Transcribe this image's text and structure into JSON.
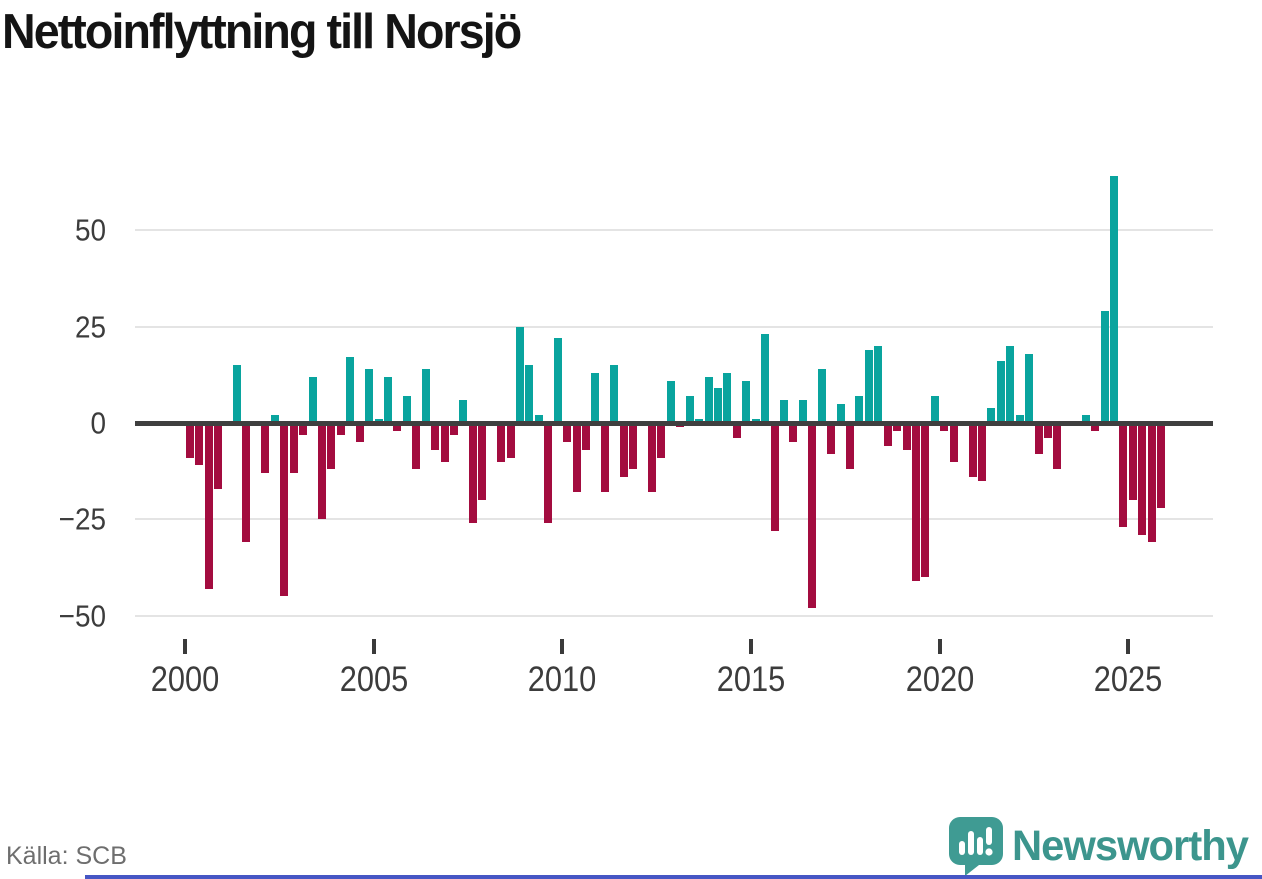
{
  "title": "Nettoinflyttning till Norsjö",
  "source": "Källa: SCB",
  "branding": {
    "name": "Newsworthy",
    "text_color": "#3c958d",
    "icon_color": "#3f9b93",
    "icon": "speech-bubble-bar-chart"
  },
  "accent_bar_color": "#4656c4",
  "chart_data": {
    "type": "bar",
    "title": "Nettoinflyttning till Norsjö",
    "frequency": "quarterly",
    "start_year": 2000,
    "end_year": 2025,
    "x_ticks": [
      {
        "label": "2000",
        "year": 2000
      },
      {
        "label": "2005",
        "year": 2005
      },
      {
        "label": "2010",
        "year": 2010
      },
      {
        "label": "2015",
        "year": 2015
      },
      {
        "label": "2020",
        "year": 2020
      },
      {
        "label": "2025",
        "year": 2025
      }
    ],
    "y_ticks": [
      {
        "label": "50",
        "value": 50
      },
      {
        "label": "25",
        "value": 25
      },
      {
        "label": "0",
        "value": 0
      },
      {
        "label": "−25",
        "value": -25
      },
      {
        "label": "−50",
        "value": -50
      }
    ],
    "ylim": [
      -50,
      65
    ],
    "grid": true,
    "legend": "none",
    "colors": {
      "positive": "#09a49e",
      "negative": "#a30c3f"
    },
    "values": [
      -9,
      -11,
      -43,
      -17,
      0,
      15,
      -31,
      0,
      -13,
      2,
      -45,
      -13,
      -3,
      12,
      -25,
      -12,
      -3,
      17,
      -5,
      14,
      1,
      12,
      -2,
      7,
      -12,
      14,
      -7,
      -10,
      -3,
      6,
      -26,
      -20,
      0,
      -10,
      -9,
      25,
      15,
      2,
      -26,
      22,
      -5,
      -18,
      -7,
      13,
      -18,
      15,
      -14,
      -12,
      0,
      -18,
      -9,
      11,
      -1,
      7,
      1,
      12,
      9,
      13,
      -4,
      11,
      1,
      23,
      -28,
      6,
      -5,
      6,
      -48,
      14,
      -8,
      5,
      -12,
      7,
      19,
      20,
      -6,
      -2,
      -7,
      -41,
      -40,
      7,
      -2,
      -10,
      0,
      -14,
      -15,
      4,
      16,
      20,
      2,
      18,
      -8,
      -4,
      -12,
      0,
      0,
      2,
      -2,
      29,
      64,
      -27,
      -20,
      -29,
      -31,
      -22
    ]
  }
}
